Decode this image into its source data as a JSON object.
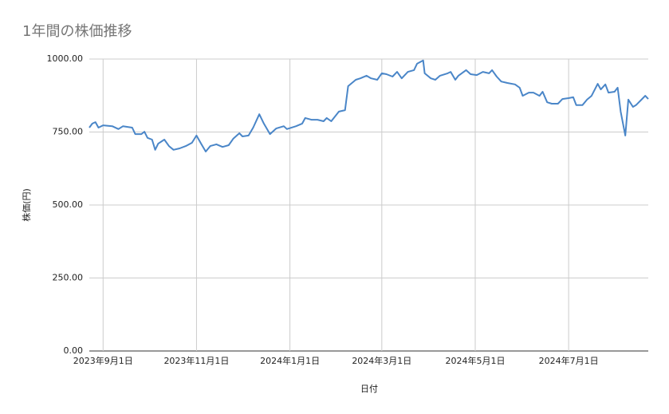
{
  "chart_data": {
    "type": "line",
    "title": "1年間の株価推移",
    "x_label": "日付",
    "y_label": "株価(円)",
    "color": "#4a86c8",
    "grid": true,
    "xlim": [
      "2023-08-23",
      "2024-08-22"
    ],
    "xticks": [
      {
        "value": "2023-09-01",
        "label": "2023年9月1日"
      },
      {
        "value": "2023-11-01",
        "label": "2023年11月1日"
      },
      {
        "value": "2024-01-01",
        "label": "2024年1月1日"
      },
      {
        "value": "2024-03-01",
        "label": "2024年3月1日"
      },
      {
        "value": "2024-05-01",
        "label": "2024年5月1日"
      },
      {
        "value": "2024-07-01",
        "label": "2024年7月1日"
      }
    ],
    "ylim": [
      0,
      1000
    ],
    "yticks": [
      {
        "value": 0,
        "label": "0.00"
      },
      {
        "value": 250,
        "label": "250.00"
      },
      {
        "value": 500,
        "label": "500.00"
      },
      {
        "value": 750,
        "label": "750.00"
      },
      {
        "value": 1000,
        "label": "1000.00"
      }
    ],
    "x": [
      "2023-08-23",
      "2023-08-25",
      "2023-08-27",
      "2023-08-29",
      "2023-09-01",
      "2023-09-07",
      "2023-09-11",
      "2023-09-14",
      "2023-09-20",
      "2023-09-22",
      "2023-09-26",
      "2023-09-28",
      "2023-09-30",
      "2023-10-03",
      "2023-10-05",
      "2023-10-07",
      "2023-10-11",
      "2023-10-14",
      "2023-10-17",
      "2023-10-21",
      "2023-10-25",
      "2023-10-29",
      "2023-11-01",
      "2023-11-04",
      "2023-11-07",
      "2023-11-10",
      "2023-11-14",
      "2023-11-18",
      "2023-11-22",
      "2023-11-25",
      "2023-11-29",
      "2023-12-01",
      "2023-12-05",
      "2023-12-08",
      "2023-12-12",
      "2023-12-15",
      "2023-12-19",
      "2023-12-23",
      "2023-12-28",
      "2023-12-30",
      "2024-01-05",
      "2024-01-09",
      "2024-01-11",
      "2024-01-15",
      "2024-01-19",
      "2024-01-23",
      "2024-01-25",
      "2024-01-28",
      "2024-02-02",
      "2024-02-06",
      "2024-02-08",
      "2024-02-13",
      "2024-02-16",
      "2024-02-20",
      "2024-02-23",
      "2024-02-27",
      "2024-03-01",
      "2024-03-04",
      "2024-03-08",
      "2024-03-11",
      "2024-03-14",
      "2024-03-18",
      "2024-03-22",
      "2024-03-24",
      "2024-03-28",
      "2024-03-29",
      "2024-04-02",
      "2024-04-05",
      "2024-04-08",
      "2024-04-13",
      "2024-04-15",
      "2024-04-18",
      "2024-04-20",
      "2024-04-25",
      "2024-04-28",
      "2024-05-02",
      "2024-05-06",
      "2024-05-10",
      "2024-05-12",
      "2024-05-15",
      "2024-05-18",
      "2024-05-22",
      "2024-05-27",
      "2024-05-30",
      "2024-06-01",
      "2024-06-05",
      "2024-06-08",
      "2024-06-12",
      "2024-06-14",
      "2024-06-17",
      "2024-06-20",
      "2024-06-24",
      "2024-06-27",
      "2024-07-01",
      "2024-07-04",
      "2024-07-06",
      "2024-07-10",
      "2024-07-13",
      "2024-07-16",
      "2024-07-20",
      "2024-07-22",
      "2024-07-25",
      "2024-07-27",
      "2024-07-31",
      "2024-08-02",
      "2024-08-04",
      "2024-08-07",
      "2024-08-09",
      "2024-08-12",
      "2024-08-14",
      "2024-08-17",
      "2024-08-20",
      "2024-08-22"
    ],
    "values": [
      765,
      779,
      784,
      765,
      773,
      770,
      760,
      770,
      765,
      743,
      743,
      751,
      730,
      724,
      689,
      710,
      724,
      702,
      689,
      694,
      702,
      713,
      738,
      710,
      683,
      702,
      708,
      699,
      705,
      727,
      746,
      735,
      738,
      765,
      811,
      779,
      743,
      762,
      770,
      760,
      770,
      779,
      798,
      792,
      792,
      787,
      798,
      787,
      820,
      825,
      907,
      929,
      934,
      943,
      934,
      929,
      951,
      948,
      940,
      956,
      934,
      956,
      962,
      984,
      995,
      951,
      934,
      929,
      943,
      951,
      956,
      929,
      943,
      962,
      948,
      945,
      956,
      951,
      962,
      940,
      923,
      918,
      913,
      902,
      874,
      885,
      885,
      874,
      888,
      852,
      847,
      847,
      863,
      866,
      869,
      842,
      842,
      861,
      874,
      915,
      896,
      913,
      885,
      888,
      902,
      820,
      738,
      861,
      836,
      842,
      858,
      874,
      863
    ]
  }
}
